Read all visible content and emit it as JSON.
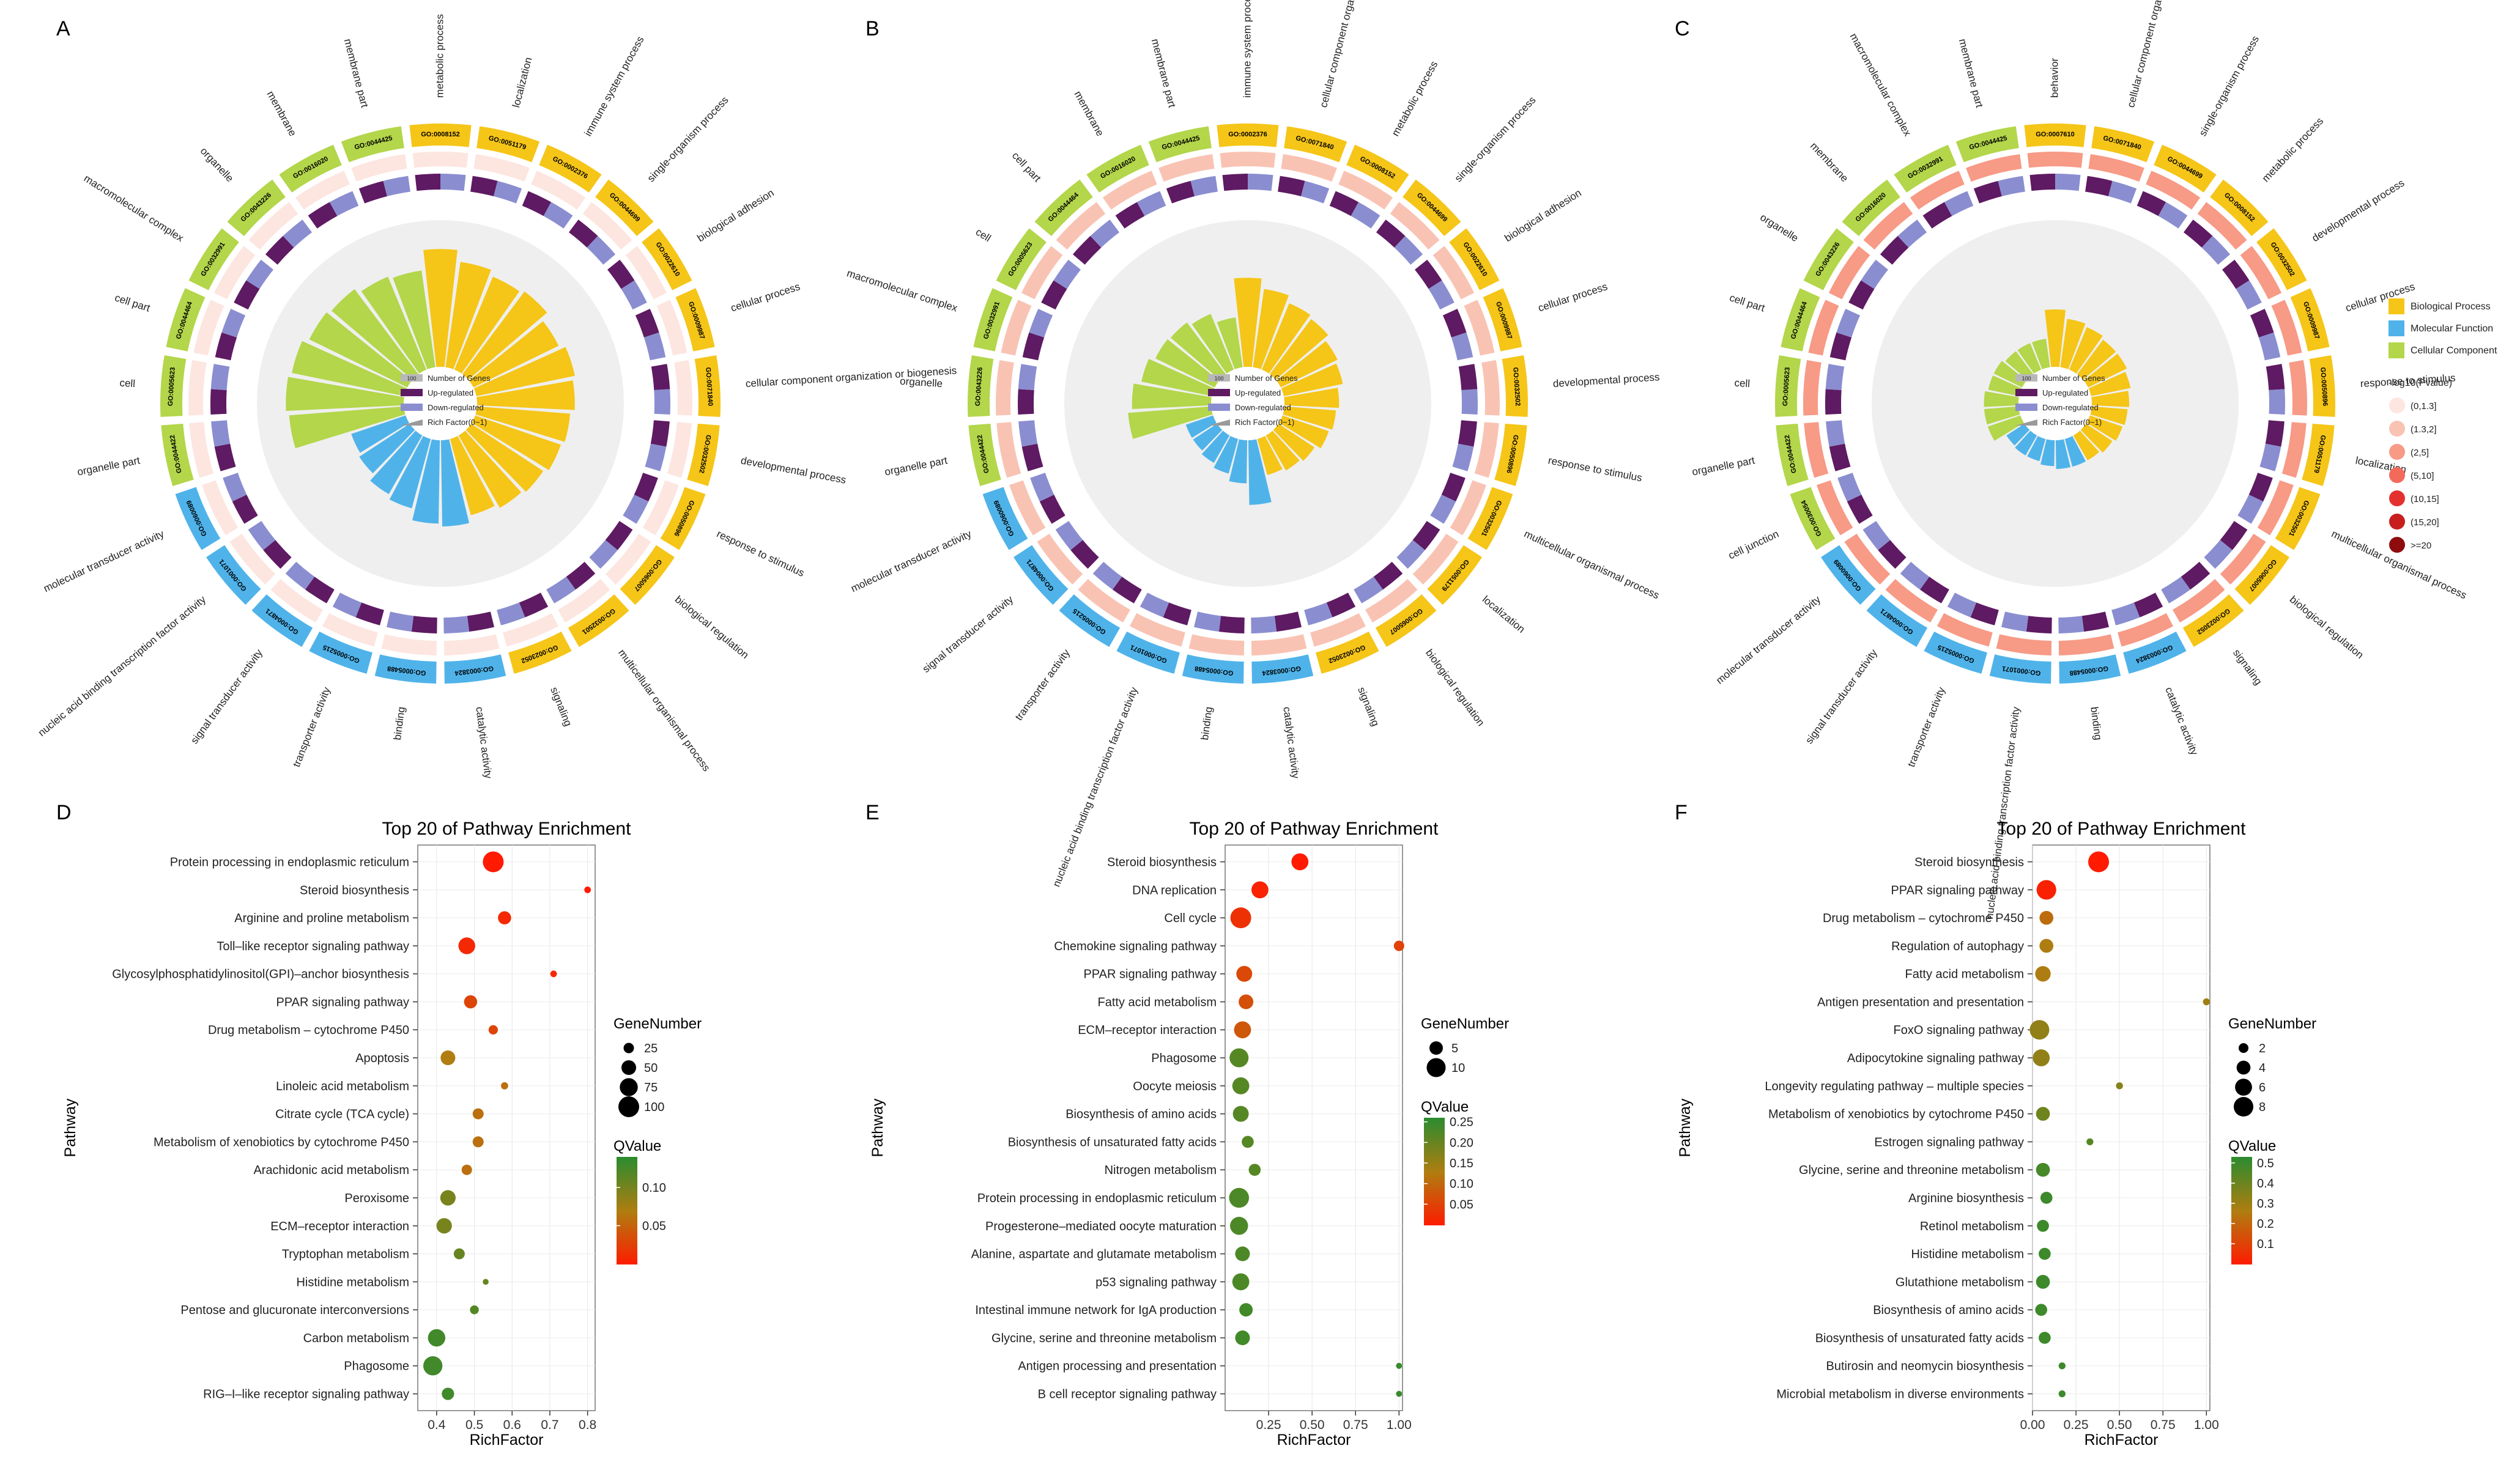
{
  "figure": {
    "panel_labels": [
      "A",
      "B",
      "C",
      "D",
      "E",
      "F"
    ]
  },
  "colors": {
    "bp": "#f5c518",
    "mf": "#4fb3ea",
    "cc": "#b3d64a",
    "up": "#5e1a62",
    "down": "#8a8ed0",
    "ring_bg": "#efefef",
    "q_high": "#2e8b2e",
    "q_mid": "#b07d10",
    "q_low": "#ff1a00"
  },
  "legend_circos": {
    "items": [
      "Number of Genes",
      "Up-regulated",
      "Down-regulated",
      "Rich Factor(0~1)"
    ],
    "count_box": "100"
  },
  "legend_categories": {
    "items": [
      "Biological Process",
      "Molecular Function",
      "Cellular Component"
    ],
    "pvalue_title": "-log10(Pvalue)",
    "pvalue_bins": [
      "(0,1.3]",
      "(1.3,2]",
      "(2,5]",
      "(5,10]",
      "(10,15]",
      "(15,20]",
      ">=20"
    ],
    "pvalue_colors": [
      "#fde6e0",
      "#f9c3b4",
      "#f79a86",
      "#f46a5a",
      "#e53030",
      "#c81e1e",
      "#8e0c0c"
    ]
  },
  "chart_data": [
    {
      "type": "circos",
      "panel": "A",
      "terms": [
        {
          "id": "GO:0008152",
          "name": "metabolic process",
          "cat": "bp",
          "rich": 0.82
        },
        {
          "id": "GO:0051179",
          "name": "localization",
          "cat": "bp",
          "rich": 0.74
        },
        {
          "id": "GO:0002376",
          "name": "immune system process",
          "cat": "bp",
          "rich": 0.7
        },
        {
          "id": "GO:0044699",
          "name": "single-organism process",
          "cat": "bp",
          "rich": 0.72
        },
        {
          "id": "GO:0022610",
          "name": "biological adhesion",
          "cat": "bp",
          "rich": 0.66
        },
        {
          "id": "GO:0009987",
          "name": "cellular process",
          "cat": "bp",
          "rich": 0.7
        },
        {
          "id": "GO:0071840",
          "name": "cellular component organization or biogenesis",
          "cat": "bp",
          "rich": 0.68
        },
        {
          "id": "GO:0032502",
          "name": "developmental process",
          "cat": "bp",
          "rich": 0.65
        },
        {
          "id": "GO:0050896",
          "name": "response to stimulus",
          "cat": "bp",
          "rich": 0.63
        },
        {
          "id": "GO:0065007",
          "name": "biological regulation",
          "cat": "bp",
          "rich": 0.6
        },
        {
          "id": "GO:0032501",
          "name": "multicellular organismal process",
          "cat": "bp",
          "rich": 0.58
        },
        {
          "id": "GO:0023052",
          "name": "signaling",
          "cat": "bp",
          "rich": 0.55
        },
        {
          "id": "GO:0003824",
          "name": "catalytic activity",
          "cat": "mf",
          "rich": 0.6
        },
        {
          "id": "GO:0005488",
          "name": "binding",
          "cat": "mf",
          "rich": 0.58
        },
        {
          "id": "GO:0005215",
          "name": "transporter activity",
          "cat": "mf",
          "rich": 0.5
        },
        {
          "id": "GO:0004871",
          "name": "signal transducer activity",
          "cat": "mf",
          "rich": 0.47
        },
        {
          "id": "GO:0001071",
          "name": "nucleic acid binding transcription factor activity",
          "cat": "mf",
          "rich": 0.42
        },
        {
          "id": "GO:0060089",
          "name": "molecular transducer activity",
          "cat": "mf",
          "rich": 0.4
        },
        {
          "id": "GO:0044422",
          "name": "organelle part",
          "cat": "cc",
          "rich": 0.8
        },
        {
          "id": "GO:0005623",
          "name": "cell",
          "cat": "cc",
          "rich": 0.82
        },
        {
          "id": "GO:0044464",
          "name": "cell part",
          "cat": "cc",
          "rich": 0.8
        },
        {
          "id": "GO:0032991",
          "name": "macromolecular complex",
          "cat": "cc",
          "rich": 0.76
        },
        {
          "id": "GO:0043226",
          "name": "organelle",
          "cat": "cc",
          "rich": 0.74
        },
        {
          "id": "GO:0016020",
          "name": "membrane",
          "cat": "cc",
          "rich": 0.7
        },
        {
          "id": "GO:0044425",
          "name": "membrane part",
          "cat": "cc",
          "rich": 0.68
        }
      ]
    },
    {
      "type": "circos",
      "panel": "B",
      "terms": [
        {
          "id": "GO:0002376",
          "name": "immune system process",
          "cat": "bp",
          "rich": 0.62
        },
        {
          "id": "GO:0071840",
          "name": "cellular component organization or biogenesis",
          "cat": "bp",
          "rich": 0.55
        },
        {
          "id": "GO:0008152",
          "name": "metabolic process",
          "cat": "bp",
          "rich": 0.5
        },
        {
          "id": "GO:0044699",
          "name": "single-organism process",
          "cat": "bp",
          "rich": 0.48
        },
        {
          "id": "GO:0022610",
          "name": "biological adhesion",
          "cat": "bp",
          "rich": 0.44
        },
        {
          "id": "GO:0009987",
          "name": "cellular process",
          "cat": "bp",
          "rich": 0.42
        },
        {
          "id": "GO:0032502",
          "name": "developmental process",
          "cat": "bp",
          "rich": 0.38
        },
        {
          "id": "GO:0050896",
          "name": "response to stimulus",
          "cat": "bp",
          "rich": 0.36
        },
        {
          "id": "GO:0032501",
          "name": "multicellular organismal process",
          "cat": "bp",
          "rich": 0.34
        },
        {
          "id": "GO:0051179",
          "name": "localization",
          "cat": "bp",
          "rich": 0.3
        },
        {
          "id": "GO:0065007",
          "name": "biological regulation",
          "cat": "bp",
          "rich": 0.28
        },
        {
          "id": "GO:0023052",
          "name": "signaling",
          "cat": "bp",
          "rich": 0.26
        },
        {
          "id": "GO:0003824",
          "name": "catalytic activity",
          "cat": "mf",
          "rich": 0.45
        },
        {
          "id": "GO:0005488",
          "name": "binding",
          "cat": "mf",
          "rich": 0.3
        },
        {
          "id": "GO:0001071",
          "name": "nucleic acid binding transcription factor activity",
          "cat": "mf",
          "rich": 0.25
        },
        {
          "id": "GO:0005215",
          "name": "transporter activity",
          "cat": "mf",
          "rich": 0.22
        },
        {
          "id": "GO:0004871",
          "name": "signal transducer activity",
          "cat": "mf",
          "rich": 0.2
        },
        {
          "id": "GO:0060089",
          "name": "molecular transducer activity",
          "cat": "mf",
          "rich": 0.2
        },
        {
          "id": "GO:0044422",
          "name": "organelle part",
          "cat": "cc",
          "rich": 0.58
        },
        {
          "id": "GO:0043226",
          "name": "organelle",
          "cat": "cc",
          "rich": 0.55
        },
        {
          "id": "GO:0032991",
          "name": "macromolecular complex",
          "cat": "cc",
          "rich": 0.5
        },
        {
          "id": "GO:0005623",
          "name": "cell",
          "cat": "cc",
          "rich": 0.46
        },
        {
          "id": "GO:0044464",
          "name": "cell part",
          "cat": "cc",
          "rich": 0.45
        },
        {
          "id": "GO:0016020",
          "name": "membrane",
          "cat": "cc",
          "rich": 0.42
        },
        {
          "id": "GO:0044425",
          "name": "membrane part",
          "cat": "cc",
          "rich": 0.35
        }
      ]
    },
    {
      "type": "circos",
      "panel": "C",
      "terms": [
        {
          "id": "GO:0007610",
          "name": "behavior",
          "cat": "bp",
          "rich": 0.4
        },
        {
          "id": "GO:0071840",
          "name": "cellular component organization or biogenesis",
          "cat": "bp",
          "rich": 0.34
        },
        {
          "id": "GO:0044699",
          "name": "single-organism process",
          "cat": "bp",
          "rich": 0.32
        },
        {
          "id": "GO:0008152",
          "name": "metabolic process",
          "cat": "bp",
          "rich": 0.3
        },
        {
          "id": "GO:0032502",
          "name": "developmental process",
          "cat": "bp",
          "rich": 0.3
        },
        {
          "id": "GO:0009987",
          "name": "cellular process",
          "cat": "bp",
          "rich": 0.28
        },
        {
          "id": "GO:0050896",
          "name": "response to stimulus",
          "cat": "bp",
          "rich": 0.26
        },
        {
          "id": "GO:0051179",
          "name": "localization",
          "cat": "bp",
          "rich": 0.25
        },
        {
          "id": "GO:0032501",
          "name": "multicellular organismal process",
          "cat": "bp",
          "rich": 0.24
        },
        {
          "id": "GO:0065007",
          "name": "biological regulation",
          "cat": "bp",
          "rich": 0.22
        },
        {
          "id": "GO:0023052",
          "name": "signaling",
          "cat": "bp",
          "rich": 0.2
        },
        {
          "id": "GO:0003824",
          "name": "catalytic activity",
          "cat": "mf",
          "rich": 0.2
        },
        {
          "id": "GO:0005488",
          "name": "binding",
          "cat": "mf",
          "rich": 0.2
        },
        {
          "id": "GO:0001071",
          "name": "nucleic acid binding transcription factor activity",
          "cat": "mf",
          "rich": 0.18
        },
        {
          "id": "GO:0005215",
          "name": "transporter activity",
          "cat": "mf",
          "rich": 0.16
        },
        {
          "id": "GO:0004871",
          "name": "signal transducer activity",
          "cat": "mf",
          "rich": 0.16
        },
        {
          "id": "GO:0060089",
          "name": "molecular transducer activity",
          "cat": "mf",
          "rich": 0.15
        },
        {
          "id": "GO:0030054",
          "name": "cell junction",
          "cat": "cc",
          "rich": 0.24
        },
        {
          "id": "GO:0044422",
          "name": "organelle part",
          "cat": "cc",
          "rich": 0.24
        },
        {
          "id": "GO:0005623",
          "name": "cell",
          "cat": "cc",
          "rich": 0.24
        },
        {
          "id": "GO:0044464",
          "name": "cell part",
          "cat": "cc",
          "rich": 0.22
        },
        {
          "id": "GO:0043226",
          "name": "organelle",
          "cat": "cc",
          "rich": 0.22
        },
        {
          "id": "GO:0016020",
          "name": "membrane",
          "cat": "cc",
          "rich": 0.2
        },
        {
          "id": "GO:0032991",
          "name": "macromolecular complex",
          "cat": "cc",
          "rich": 0.2
        },
        {
          "id": "GO:0044425",
          "name": "membrane part",
          "cat": "cc",
          "rich": 0.2
        }
      ]
    },
    {
      "type": "scatter",
      "panel": "D",
      "title": "Top 20 of Pathway Enrichment",
      "xlabel": "RichFactor",
      "ylabel": "Pathway",
      "xlim": [
        0.35,
        0.82
      ],
      "xticks": [
        "0.4",
        "0.5",
        "0.6",
        "0.7",
        "0.8"
      ],
      "size_title": "GeneNumber",
      "size_values": [
        "25",
        "50",
        "75",
        "100"
      ],
      "color_title": "QValue",
      "color_ticks": [
        "0.10",
        "0.05"
      ],
      "qlim": [
        0.0,
        0.14
      ],
      "pathways": [
        "Protein processing in endoplasmic reticulum",
        "Steroid biosynthesis",
        "Arginine and proline metabolism",
        "Toll–like receptor signaling pathway",
        "Glycosylphosphatidylinositol(GPI)–anchor biosynthesis",
        "PPAR signaling pathway",
        "Drug metabolism – cytochrome P450",
        "Apoptosis",
        "Linoleic acid metabolism",
        "Citrate cycle (TCA cycle)",
        "Metabolism of xenobiotics by cytochrome P450",
        "Arachidonic acid metabolism",
        "Peroxisome",
        "ECM–receptor interaction",
        "Tryptophan metabolism",
        "Histidine metabolism",
        "Pentose and glucuronate interconversions",
        "Carbon metabolism",
        "Phagosome",
        "RIG–I–like receptor signaling pathway"
      ],
      "rich": [
        0.55,
        0.8,
        0.58,
        0.48,
        0.71,
        0.49,
        0.55,
        0.43,
        0.58,
        0.51,
        0.51,
        0.48,
        0.43,
        0.42,
        0.46,
        0.53,
        0.5,
        0.4,
        0.39,
        0.43
      ],
      "genes": [
        100,
        10,
        40,
        65,
        10,
        40,
        20,
        50,
        12,
        28,
        28,
        25,
        55,
        55,
        28,
        8,
        18,
        70,
        85,
        35
      ],
      "qvalue": [
        0.0,
        0.0,
        0.01,
        0.01,
        0.01,
        0.03,
        0.03,
        0.07,
        0.06,
        0.06,
        0.06,
        0.06,
        0.1,
        0.1,
        0.11,
        0.11,
        0.12,
        0.13,
        0.13,
        0.13
      ]
    },
    {
      "type": "scatter",
      "panel": "E",
      "title": "Top 20 of Pathway Enrichment",
      "xlabel": "RichFactor",
      "ylabel": "Pathway",
      "xlim": [
        0.0,
        1.02
      ],
      "xticks": [
        "0.25",
        "0.50",
        "0.75",
        "1.00"
      ],
      "size_title": "GeneNumber",
      "size_values": [
        "5",
        "10"
      ],
      "color_title": "QValue",
      "color_ticks": [
        "0.25",
        "0.20",
        "0.15",
        "0.10",
        "0.05"
      ],
      "qlim": [
        0.0,
        0.26
      ],
      "pathways": [
        "Steroid biosynthesis",
        "DNA replication",
        "Cell cycle",
        "Chemokine signaling pathway",
        "PPAR signaling pathway",
        "Fatty acid metabolism",
        "ECM–receptor interaction",
        "Phagosome",
        "Oocyte meiosis",
        "Biosynthesis of amino acids",
        "Biosynthesis of unsaturated fatty acids",
        "Nitrogen metabolism",
        "Protein processing in endoplasmic reticulum",
        "Progesterone–mediated oocyte maturation",
        "Alanine, aspartate and glutamate metabolism",
        "p53 signaling pathway",
        "Intestinal immune network for IgA production",
        "Glycine, serine and threonine metabolism",
        "Antigen processing and presentation",
        "B cell receptor signaling pathway"
      ],
      "rich": [
        0.43,
        0.2,
        0.09,
        1.0,
        0.11,
        0.12,
        0.1,
        0.08,
        0.09,
        0.09,
        0.13,
        0.17,
        0.08,
        0.08,
        0.1,
        0.09,
        0.12,
        0.1,
        1.0,
        1.0
      ],
      "genes": [
        8,
        8,
        12,
        3,
        7,
        6,
        8,
        10,
        8,
        7,
        4,
        4,
        11,
        9,
        6,
        8,
        5,
        6,
        1,
        1
      ],
      "qvalue": [
        0.0,
        0.01,
        0.03,
        0.05,
        0.06,
        0.07,
        0.08,
        0.22,
        0.22,
        0.22,
        0.22,
        0.22,
        0.23,
        0.23,
        0.23,
        0.23,
        0.24,
        0.24,
        0.25,
        0.25
      ]
    },
    {
      "type": "scatter",
      "panel": "F",
      "title": "Top 20 of Pathway Enrichment",
      "xlabel": "RichFactor",
      "ylabel": "Pathway",
      "xlim": [
        0.0,
        1.02
      ],
      "xticks": [
        "0.00",
        "0.25",
        "0.50",
        "0.75",
        "1.00"
      ],
      "size_title": "GeneNumber",
      "size_values": [
        "2",
        "4",
        "6",
        "8"
      ],
      "color_title": "QValue",
      "color_ticks": [
        "0.5",
        "0.4",
        "0.3",
        "0.2",
        "0.1"
      ],
      "qlim": [
        0.0,
        0.53
      ],
      "pathways": [
        "Steroid biosynthesis",
        "PPAR signaling pathway",
        "Drug metabolism – cytochrome P450",
        "Regulation of autophagy",
        "Fatty acid metabolism",
        "Antigen presentation and presentation",
        "FoxO signaling pathway",
        "Adipocytokine signaling pathway",
        "Longevity regulating pathway – multiple species",
        "Metabolism of xenobiotics by cytochrome P450",
        "Estrogen signaling pathway",
        "Glycine, serine and threonine metabolism",
        "Arginine biosynthesis",
        "Retinol metabolism",
        "Histidine metabolism",
        "Glutathione metabolism",
        "Biosynthesis of amino acids",
        "Biosynthesis of unsaturated fatty acids",
        "Butirosin and neomycin biosynthesis",
        "Microbial metabolism in diverse environments"
      ],
      "rich": [
        0.38,
        0.08,
        0.08,
        0.08,
        0.06,
        1.0,
        0.04,
        0.05,
        0.5,
        0.06,
        0.33,
        0.06,
        0.08,
        0.06,
        0.07,
        0.06,
        0.05,
        0.07,
        0.17,
        0.17
      ],
      "genes": [
        9,
        8,
        4,
        4,
        5,
        1,
        8,
        6,
        1,
        4,
        1,
        4,
        3,
        3,
        3,
        4,
        3,
        3,
        1,
        1
      ],
      "qvalue": [
        0.0,
        0.02,
        0.22,
        0.27,
        0.27,
        0.3,
        0.33,
        0.33,
        0.35,
        0.4,
        0.45,
        0.48,
        0.5,
        0.5,
        0.5,
        0.5,
        0.5,
        0.5,
        0.5,
        0.5
      ]
    }
  ]
}
